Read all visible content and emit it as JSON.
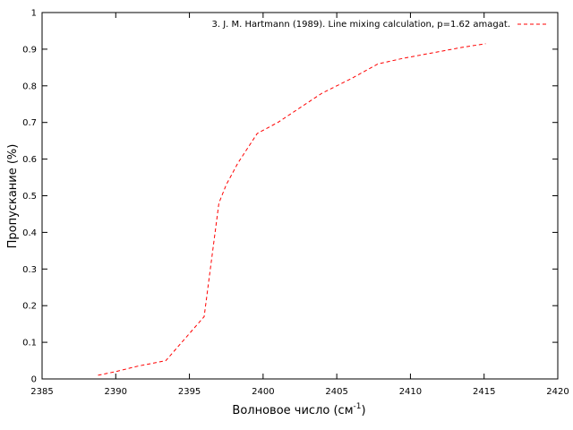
{
  "chart_data": {
    "type": "line",
    "title": "",
    "xlabel": "Волновое число (см",
    "xlabel_sup": "-1",
    "xlabel_tail": ")",
    "ylabel": "Пропускание (%)",
    "xlim": [
      2385,
      2420
    ],
    "ylim": [
      0,
      1
    ],
    "xticks": [
      2385,
      2390,
      2395,
      2400,
      2405,
      2410,
      2415,
      2420
    ],
    "yticks": [
      0,
      0.1,
      0.2,
      0.3,
      0.4,
      0.5,
      0.6,
      0.7,
      0.8,
      0.9,
      1
    ],
    "xtick_labels": [
      "2385",
      "2390",
      "2395",
      "2400",
      "2405",
      "2410",
      "2415",
      "2420"
    ],
    "ytick_labels": [
      "0",
      "0.1",
      "0.2",
      "0.3",
      "0.4",
      "0.5",
      "0.6",
      "0.7",
      "0.8",
      "0.9",
      "1"
    ],
    "grid": false,
    "legend_position": "top-right",
    "series": [
      {
        "name": "3. J. M. Hartmann (1989). Line mixing calculation, p=1.62 amagat.",
        "color": "#ff0000",
        "line_style": "dashed",
        "x": [
          2388.8,
          2390.0,
          2391.5,
          2393.4,
          2394.7,
          2396.0,
          2397.0,
          2397.5,
          2398.3,
          2399.6,
          2401.0,
          2402.5,
          2404.0,
          2406.0,
          2407.8,
          2409.5,
          2411.5,
          2413.5,
          2415.1
        ],
        "y": [
          0.01,
          0.02,
          0.035,
          0.05,
          0.11,
          0.17,
          0.48,
          0.53,
          0.59,
          0.67,
          0.7,
          0.74,
          0.78,
          0.82,
          0.86,
          0.875,
          0.89,
          0.905,
          0.915
        ]
      }
    ]
  }
}
